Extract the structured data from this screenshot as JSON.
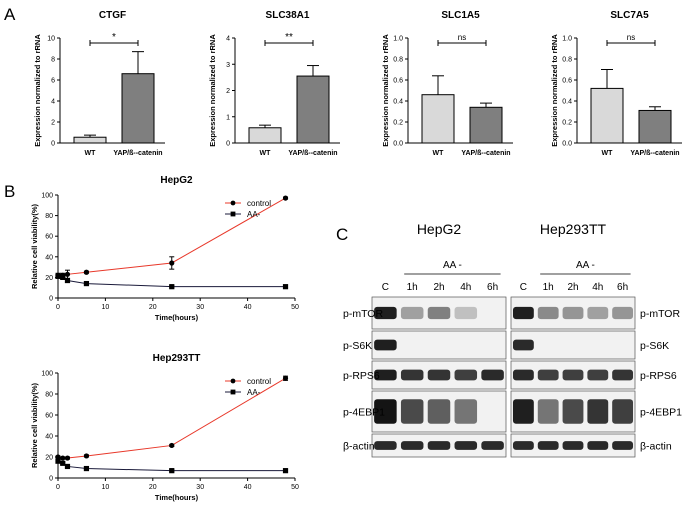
{
  "panel_labels": [
    "A",
    "B",
    "C"
  ],
  "colors": {
    "bar_wt": "#d9d9d9",
    "bar_yap": "#7f7f7f",
    "control_line": "#e8382a",
    "aa_line": "#1a1a3a"
  },
  "chart_data": [
    {
      "type": "bar",
      "panel": "A",
      "title": "CTGF",
      "ylabel": "Expression normalized to rRNA",
      "categories": [
        "WT",
        "YAP/ß--catenin"
      ],
      "values": [
        0.55,
        6.6
      ],
      "errors": [
        0.2,
        2.1
      ],
      "ylim": [
        0,
        10
      ],
      "yticks": [
        "0",
        "2",
        "4",
        "6",
        "8",
        "10"
      ],
      "significance": "*"
    },
    {
      "type": "bar",
      "panel": "A",
      "title": "SLC38A1",
      "ylabel": "Expression normalized to rRNA",
      "categories": [
        "WT",
        "YAP/ß--catenin"
      ],
      "values": [
        0.58,
        2.55
      ],
      "errors": [
        0.1,
        0.4
      ],
      "ylim": [
        0,
        4
      ],
      "yticks": [
        "0",
        "1",
        "2",
        "3",
        "4"
      ],
      "significance": "**"
    },
    {
      "type": "bar",
      "panel": "A",
      "title": "SLC1A5",
      "ylabel": "Expression normalized to rRNA",
      "categories": [
        "WT",
        "YAP/ß--catenin"
      ],
      "values": [
        0.46,
        0.34
      ],
      "errors": [
        0.18,
        0.04
      ],
      "ylim": [
        0,
        1.0
      ],
      "yticks": [
        "0.0",
        "0.2",
        "0.4",
        "0.6",
        "0.8",
        "1.0"
      ],
      "significance": "ns"
    },
    {
      "type": "bar",
      "panel": "A",
      "title": "SLC7A5",
      "ylabel": "Expression normalized to rRNA",
      "categories": [
        "WT",
        "YAP/ß--catenin"
      ],
      "values": [
        0.52,
        0.31
      ],
      "errors": [
        0.18,
        0.035
      ],
      "ylim": [
        0,
        1.0
      ],
      "yticks": [
        "0.0",
        "0.2",
        "0.4",
        "0.6",
        "0.8",
        "1.0"
      ],
      "significance": "ns"
    },
    {
      "type": "line",
      "panel": "B",
      "title": "HepG2",
      "xlabel": "Time(hours)",
      "ylabel": "Relative cell viability(%)",
      "xlim": [
        0,
        50
      ],
      "ylim": [
        0,
        100
      ],
      "xticks": [
        "0",
        "10",
        "20",
        "30",
        "40",
        "50"
      ],
      "yticks": [
        "0",
        "20",
        "40",
        "60",
        "80",
        "100"
      ],
      "legend_position": "top-right",
      "series": [
        {
          "name": "control",
          "marker": "circle",
          "x": [
            0,
            1,
            2,
            6,
            24,
            48
          ],
          "y": [
            22,
            22,
            23,
            25,
            34,
            97
          ],
          "errors": [
            2,
            2,
            4,
            1,
            6,
            1
          ]
        },
        {
          "name": "AA-",
          "marker": "square",
          "x": [
            0,
            1,
            2,
            6,
            24,
            48
          ],
          "y": [
            21,
            20,
            17,
            14,
            11,
            11
          ],
          "errors": [
            1,
            1,
            2,
            1,
            1,
            1
          ]
        }
      ]
    },
    {
      "type": "line",
      "panel": "B",
      "title": "Hep293TT",
      "xlabel": "Time(hours)",
      "ylabel": "Relative cell viability(%)",
      "xlim": [
        0,
        50
      ],
      "ylim": [
        0,
        100
      ],
      "xticks": [
        "0",
        "10",
        "20",
        "30",
        "40",
        "50"
      ],
      "yticks": [
        "0",
        "20",
        "40",
        "60",
        "80",
        "100"
      ],
      "legend_position": "top-right",
      "series": [
        {
          "name": "control",
          "marker": "circle",
          "x": [
            0,
            1,
            2,
            6,
            24,
            48
          ],
          "y": [
            20,
            19,
            19,
            21,
            31,
            95
          ],
          "errors": [
            1,
            1,
            1,
            1,
            1,
            2
          ]
        },
        {
          "name": "AA-",
          "marker": "square",
          "x": [
            0,
            1,
            2,
            6,
            24,
            48
          ],
          "y": [
            16,
            14,
            11,
            9,
            7,
            7
          ],
          "errors": [
            1,
            1,
            1,
            1,
            1,
            1
          ]
        }
      ]
    }
  ],
  "western_blot": {
    "panel": "C",
    "blots": [
      {
        "title": "HepG2"
      },
      {
        "title": "Hep293TT"
      }
    ],
    "treatment_label": "AA -",
    "lanes": [
      "C",
      "1h",
      "2h",
      "4h",
      "6h"
    ],
    "rows_left": [
      "p-mTOR",
      "p-S6K",
      "p-RPS6",
      "p-4EBP1",
      "β-actin"
    ],
    "rows_right": [
      "p-mTOR",
      "p-S6K",
      "p-RPS6",
      "p-4EBP1",
      "β-actin"
    ],
    "band_intensity": {
      "HepG2": [
        [
          0.95,
          0.35,
          0.5,
          0.2,
          0.0
        ],
        [
          0.95,
          0.0,
          0.0,
          0.0,
          0.0
        ],
        [
          0.95,
          0.85,
          0.85,
          0.8,
          0.9
        ],
        [
          1.0,
          0.75,
          0.65,
          0.55,
          0.0
        ],
        [
          0.9,
          0.9,
          0.9,
          0.9,
          0.9
        ]
      ],
      "Hep293TT": [
        [
          0.95,
          0.45,
          0.4,
          0.35,
          0.4
        ],
        [
          0.9,
          0.0,
          0.0,
          0.0,
          0.0
        ],
        [
          0.9,
          0.8,
          0.8,
          0.8,
          0.85
        ],
        [
          0.95,
          0.55,
          0.75,
          0.85,
          0.8
        ],
        [
          0.9,
          0.9,
          0.9,
          0.9,
          0.9
        ]
      ]
    }
  }
}
